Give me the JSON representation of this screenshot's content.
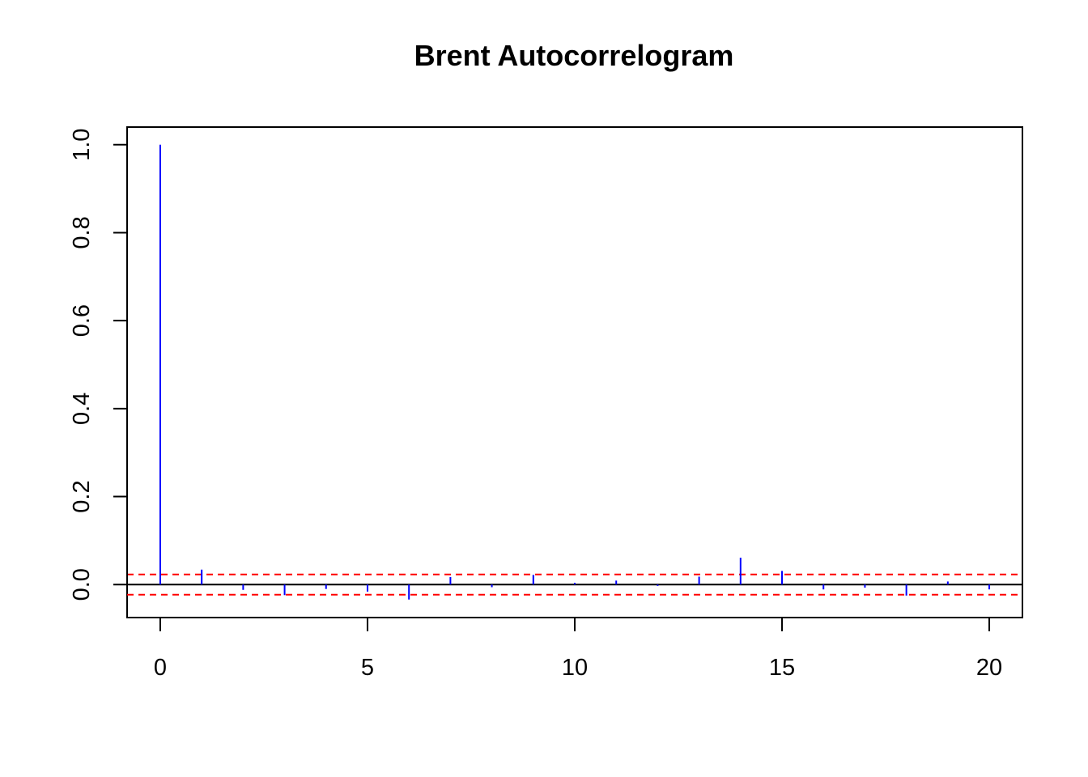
{
  "chart_data": {
    "type": "bar",
    "title": "Brent Autocorrelogram",
    "xlabel": "",
    "ylabel": "",
    "x": [
      0,
      1,
      2,
      3,
      4,
      5,
      6,
      7,
      8,
      9,
      10,
      11,
      12,
      13,
      14,
      15,
      16,
      17,
      18,
      19,
      20
    ],
    "values": [
      1.0,
      0.034,
      -0.012,
      -0.024,
      -0.01,
      -0.016,
      -0.034,
      0.017,
      -0.006,
      0.022,
      0.004,
      0.009,
      -0.003,
      0.018,
      0.061,
      0.031,
      -0.011,
      -0.007,
      -0.025,
      0.007,
      -0.011
    ],
    "xlim": [
      -0.8,
      20.8
    ],
    "ylim": [
      -0.075,
      1.04
    ],
    "x_ticks": [
      0,
      5,
      10,
      15,
      20
    ],
    "y_ticks": [
      0.0,
      0.2,
      0.4,
      0.6,
      0.8,
      1.0
    ],
    "x_tick_labels": [
      "0",
      "5",
      "10",
      "15",
      "20"
    ],
    "y_tick_labels": [
      "0.0",
      "0.2",
      "0.4",
      "0.6",
      "0.8",
      "1.0"
    ],
    "confidence_band": [
      0.023,
      -0.023
    ],
    "colors": {
      "bars": "#0000ff",
      "confidence_band": "#ff0000",
      "zero_line": "#000000"
    },
    "grid": false,
    "legend": "none"
  }
}
